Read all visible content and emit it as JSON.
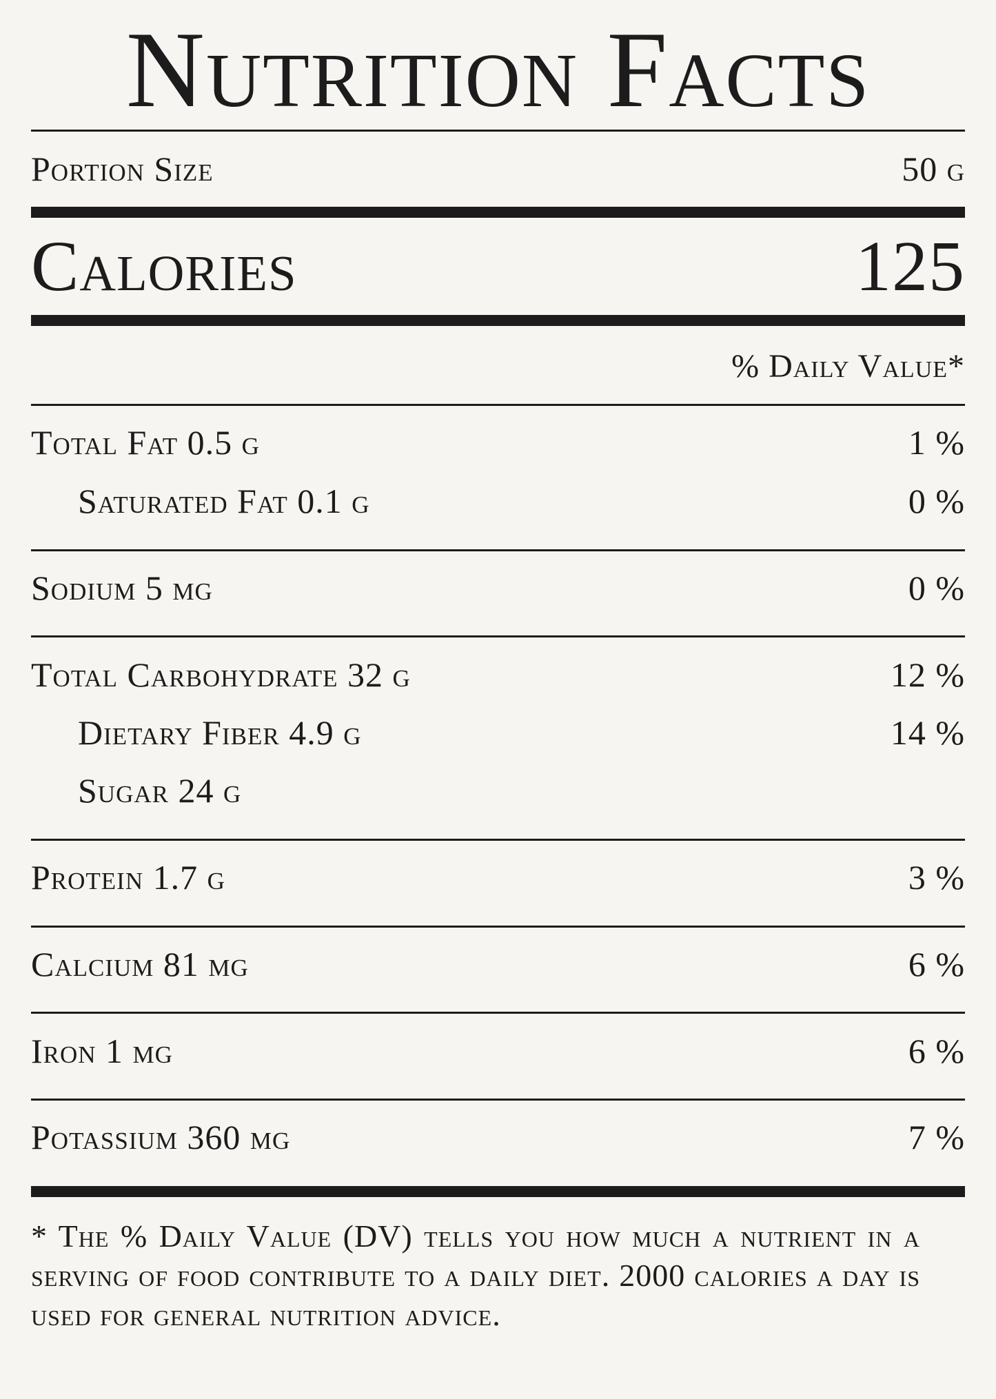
{
  "title": "Nutrition Facts",
  "portion": {
    "label": "Portion Size",
    "value": "50 g"
  },
  "calories": {
    "label": "Calories",
    "value": "125"
  },
  "daily_value_header": "% Daily Value*",
  "nutrients": [
    {
      "name": "Total Fat 0.5 g",
      "dv": "1 %"
    },
    {
      "name": "Saturated Fat 0.1 g",
      "dv": "0 %"
    },
    {
      "name": "Sodium 5 mg",
      "dv": "0 %"
    },
    {
      "name": "Total Carbohydrate 32 g",
      "dv": "12 %"
    },
    {
      "name": "Dietary Fiber 4.9 g",
      "dv": "14 %"
    },
    {
      "name": "Sugar 24 g",
      "dv": ""
    },
    {
      "name": "Protein 1.7 g",
      "dv": "3 %"
    },
    {
      "name": "Calcium 81 mg",
      "dv": "6 %"
    },
    {
      "name": "Iron 1 mg",
      "dv": "6 %"
    },
    {
      "name": "Potassium 360 mg",
      "dv": "7 %"
    }
  ],
  "footnote": "* The % Daily Value (DV) tells you how much a nutrient in a serving of food contribute to a daily diet. 2000 calories a day is used for general nutrition advice."
}
